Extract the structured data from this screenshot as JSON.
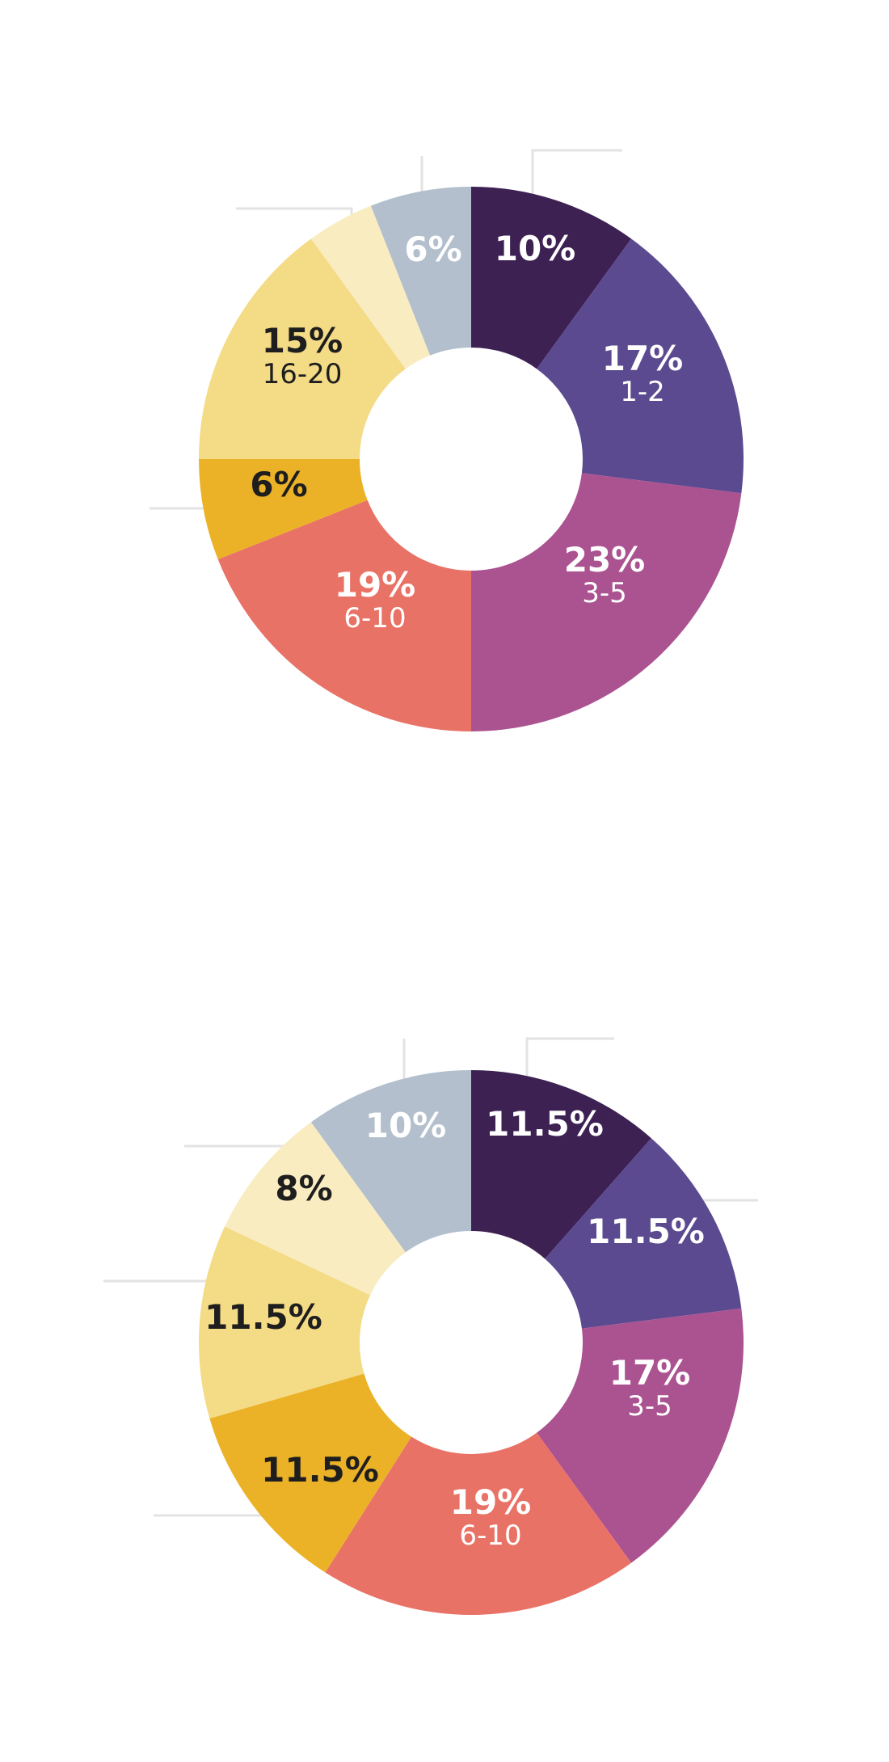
{
  "chart_data": [
    {
      "type": "pie",
      "slices": [
        {
          "value": 10,
          "label": "10%",
          "sublabel": "",
          "color": "#3d2153",
          "text_color": "#ffffff"
        },
        {
          "value": 17,
          "label": "17%",
          "sublabel": "1-2",
          "color": "#5b4a90",
          "text_color": "#ffffff"
        },
        {
          "value": 23,
          "label": "23%",
          "sublabel": "3-5",
          "color": "#ab5290",
          "text_color": "#ffffff"
        },
        {
          "value": 19,
          "label": "19%",
          "sublabel": "6-10",
          "color": "#e97266",
          "text_color": "#ffffff"
        },
        {
          "value": 6,
          "label": "6%",
          "sublabel": "",
          "color": "#ebb227",
          "text_color": "#1e1e1e"
        },
        {
          "value": 15,
          "label": "15%",
          "sublabel": "16-20",
          "color": "#f4db86",
          "text_color": "#1e1e1e"
        },
        {
          "value": 4,
          "label": "",
          "sublabel": "",
          "color": "#f9ecc1",
          "text_color": "#1e1e1e"
        },
        {
          "value": 6,
          "label": "6%",
          "sublabel": "",
          "color": "#b3bfcc",
          "text_color": "#ffffff"
        }
      ]
    },
    {
      "type": "pie",
      "slices": [
        {
          "value": 11.5,
          "label": "11.5%",
          "sublabel": "",
          "color": "#3d2153",
          "text_color": "#ffffff"
        },
        {
          "value": 11.5,
          "label": "11.5%",
          "sublabel": "",
          "color": "#5b4a90",
          "text_color": "#ffffff"
        },
        {
          "value": 17,
          "label": "17%",
          "sublabel": "3-5",
          "color": "#ab5290",
          "text_color": "#ffffff"
        },
        {
          "value": 19,
          "label": "19%",
          "sublabel": "6-10",
          "color": "#e97266",
          "text_color": "#ffffff"
        },
        {
          "value": 11.5,
          "label": "11.5%",
          "sublabel": "",
          "color": "#ebb227",
          "text_color": "#1e1e1e"
        },
        {
          "value": 11.5,
          "label": "11.5%",
          "sublabel": "",
          "color": "#f4db86",
          "text_color": "#1e1e1e"
        },
        {
          "value": 8,
          "label": "8%",
          "sublabel": "",
          "color": "#f9ecc1",
          "text_color": "#1e1e1e"
        },
        {
          "value": 10,
          "label": "10%",
          "sublabel": "",
          "color": "#b3bfcc",
          "text_color": "#ffffff"
        }
      ]
    }
  ]
}
